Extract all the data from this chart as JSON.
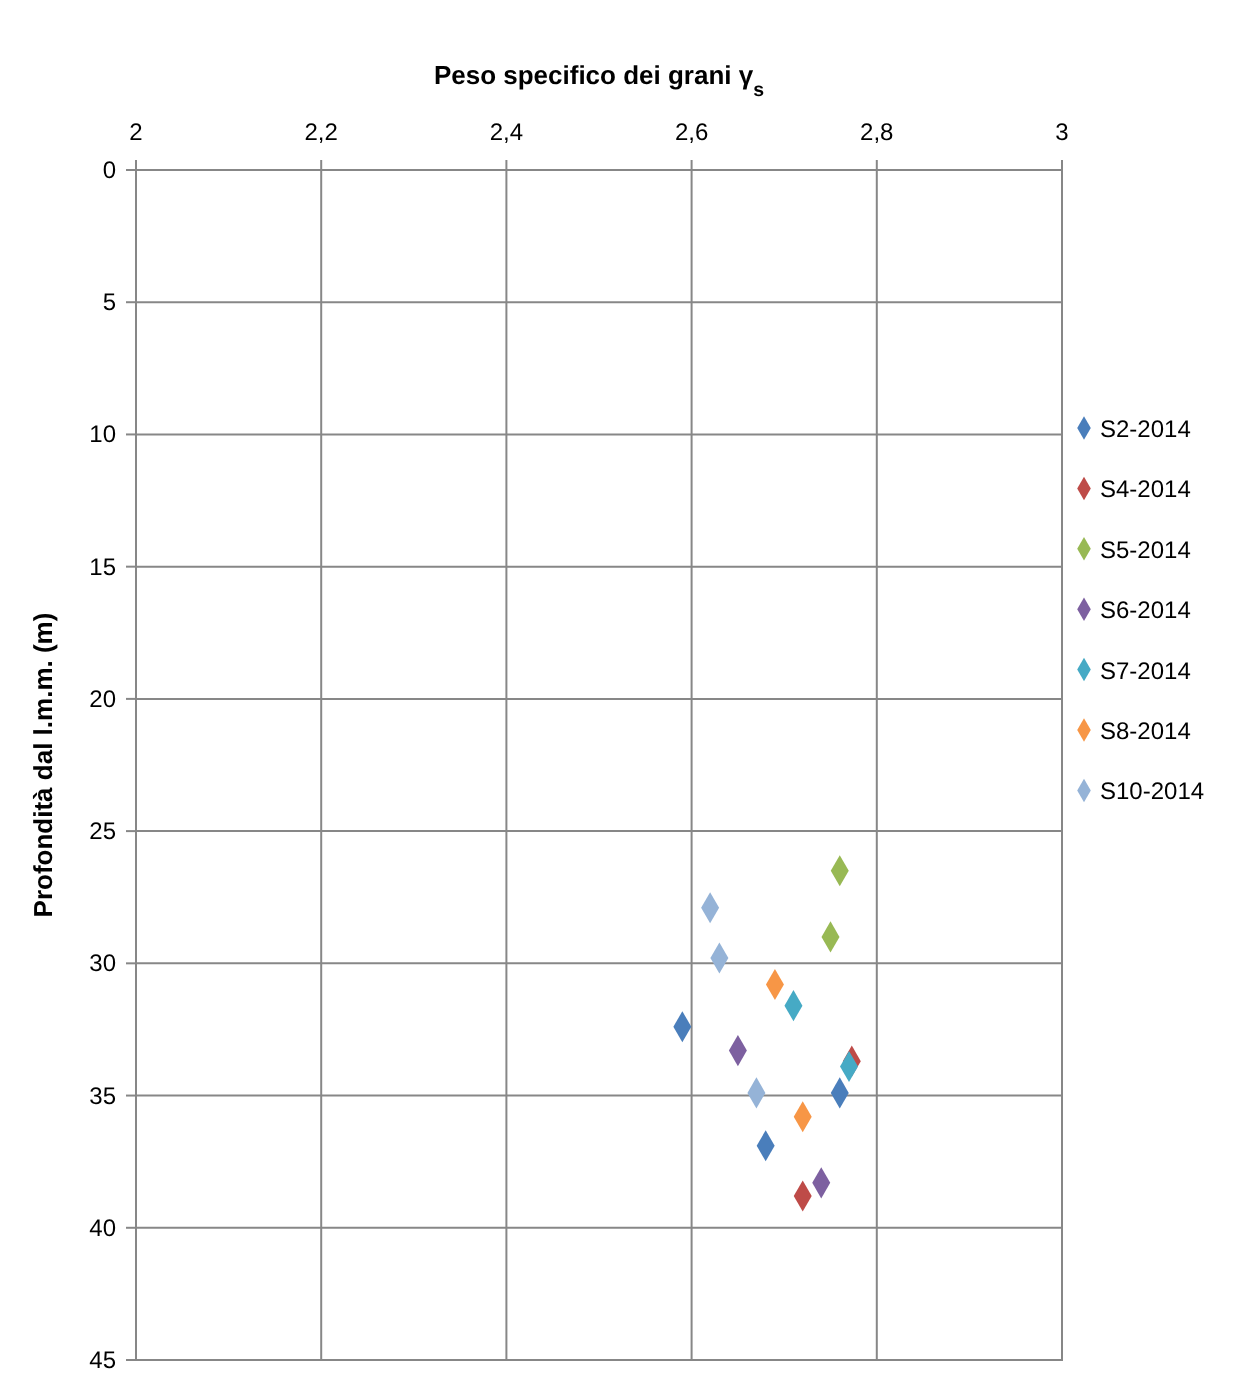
{
  "chart_data": {
    "type": "scatter",
    "title": "Peso specifico dei grani γ$_{s}$",
    "ylabel": "Profondità dal l.m.m.  (m)",
    "xlim": [
      2,
      3
    ],
    "xticks": [
      2,
      {
        "value": 2.2,
        "label": "2,2"
      },
      {
        "value": 2.4,
        "label": "2,4"
      },
      {
        "value": 2.6,
        "label": "2,6"
      },
      {
        "value": 2.8,
        "label": "2,8"
      },
      3
    ],
    "ylim": [
      45,
      0
    ],
    "yticks": [
      0,
      5,
      10,
      15,
      20,
      25,
      30,
      35,
      40,
      45
    ],
    "grid": true,
    "legend": "right",
    "marker": "diamond",
    "series": [
      {
        "name": "S2-2014",
        "color": "#4a7ebb",
        "x": [
          2.59,
          2.76,
          2.68
        ],
        "values": [
          32.4,
          34.9,
          36.9
        ]
      },
      {
        "name": "S4-2014",
        "color": "#be4b48",
        "x": [
          2.72,
          2.773
        ],
        "values": [
          38.8,
          33.7
        ]
      },
      {
        "name": "S5-2014",
        "color": "#98b954",
        "x": [
          2.76,
          2.75
        ],
        "values": [
          26.5,
          29.0
        ]
      },
      {
        "name": "S6-2014",
        "color": "#7d60a0",
        "x": [
          2.65,
          2.74
        ],
        "values": [
          33.3,
          38.3
        ]
      },
      {
        "name": "S7-2014",
        "color": "#46aac5",
        "x": [
          2.71,
          2.77
        ],
        "values": [
          31.6,
          33.9
        ]
      },
      {
        "name": "S8-2014",
        "color": "#f79646",
        "x": [
          2.69,
          2.72
        ],
        "values": [
          30.8,
          35.8
        ]
      },
      {
        "name": "S10-2014",
        "color": "#95b3d7",
        "x": [
          2.62,
          2.63,
          2.67
        ],
        "values": [
          27.9,
          29.8,
          34.9
        ]
      }
    ]
  }
}
